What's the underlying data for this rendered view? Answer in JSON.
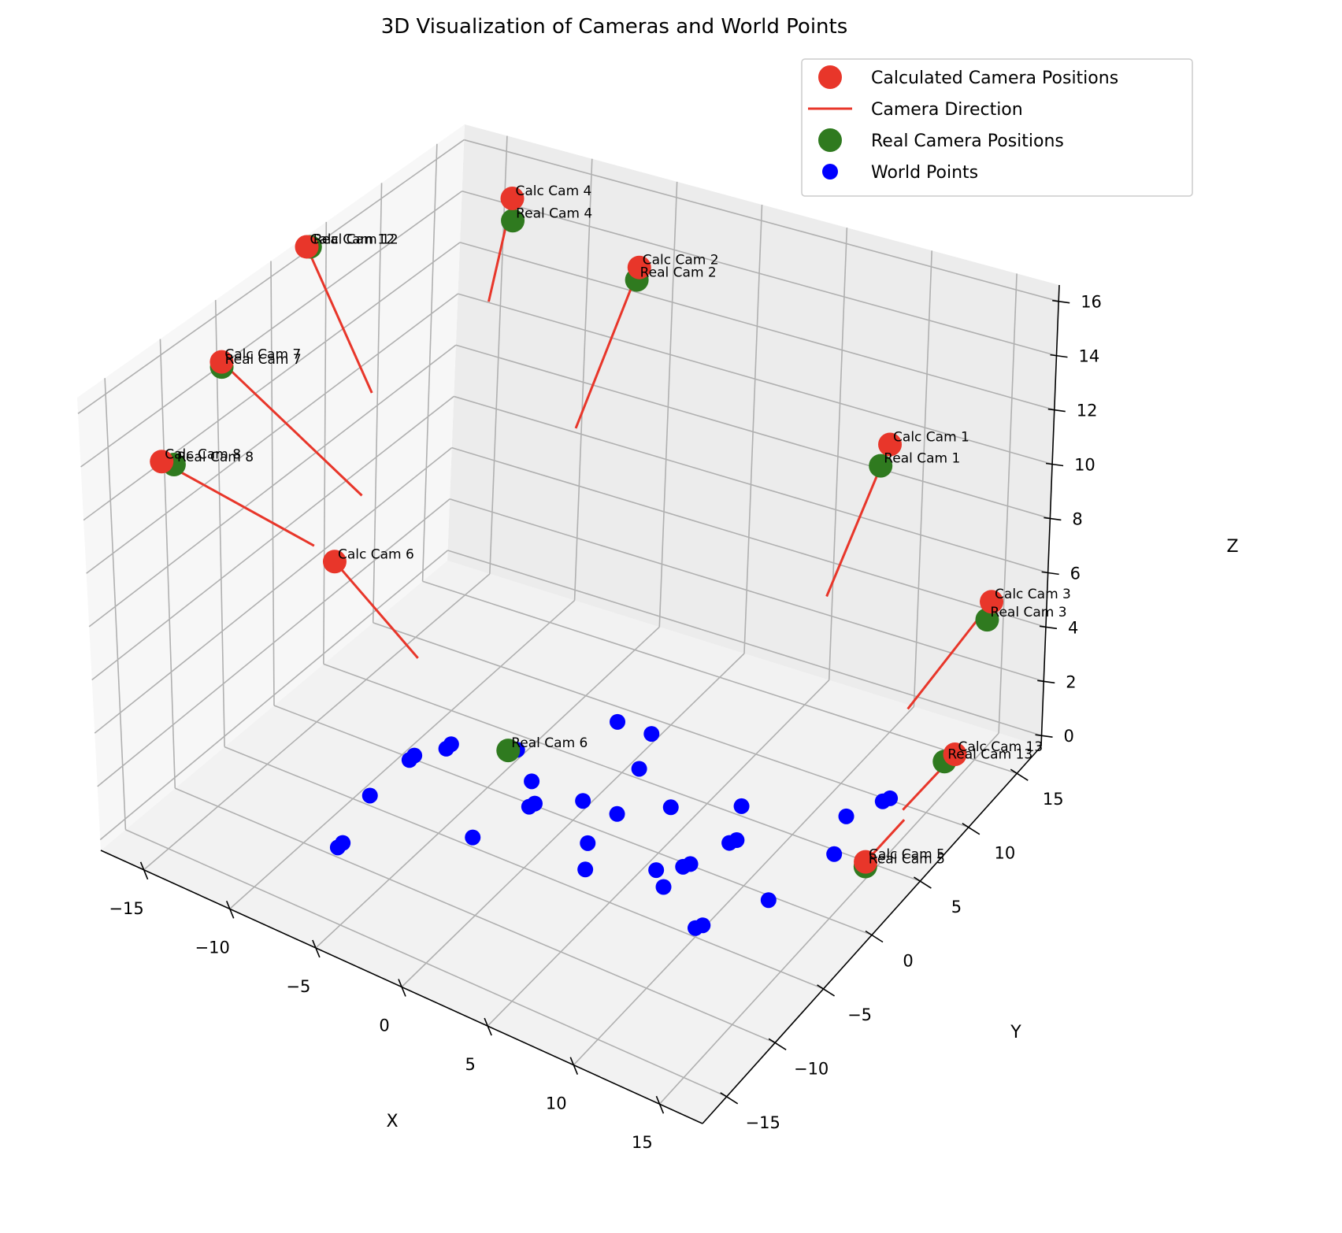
{
  "chart_data": {
    "type": "scatter",
    "title": "3D Visualization of Cameras and World Points",
    "xlabel": "X",
    "ylabel": "Y",
    "zlabel": "Z",
    "x_ticks": [
      "−15",
      "−10",
      "−5",
      "0",
      "5",
      "10",
      "15"
    ],
    "y_ticks": [
      "−15",
      "−10",
      "−5",
      "0",
      "5",
      "10",
      "15"
    ],
    "z_ticks": [
      "0",
      "2",
      "4",
      "6",
      "8",
      "10",
      "12",
      "14",
      "16"
    ],
    "grid": true,
    "legend_position": "top-right",
    "legend": [
      {
        "label": "Calculated Camera Positions",
        "kind": "marker",
        "color": "#e8362a"
      },
      {
        "label": "Camera Direction",
        "kind": "line",
        "color": "#e8362a"
      },
      {
        "label": "Real Camera Positions",
        "kind": "marker",
        "color": "#2f7a1f"
      },
      {
        "label": "World Points",
        "kind": "marker-small",
        "color": "#0000ff"
      }
    ],
    "colors": {
      "calc": "#e8362a",
      "real": "#2f7a1f",
      "world": "#0000ff",
      "direction": "#e8362a"
    },
    "calc_cameras": [
      {
        "label": "Calc Cam 1",
        "x": 8.5,
        "y": 16.6,
        "z": 9.5
      },
      {
        "label": "Calc Cam 2",
        "x": -6.0,
        "y": 15.8,
        "z": 13.8
      },
      {
        "label": "Calc Cam 3",
        "x": 16.0,
        "y": 14.3,
        "z": 6.1
      },
      {
        "label": "Calc Cam 4",
        "x": -11.2,
        "y": 12.0,
        "z": 16.8
      },
      {
        "label": "Calc Cam 5",
        "x": 16.0,
        "y": 1.8,
        "z": 1.5
      },
      {
        "label": "Calc Cam 6",
        "x": -11.6,
        "y": -3.9,
        "z": 8.1
      },
      {
        "label": "Calc Cam 7",
        "x": -14.4,
        "y": -9.5,
        "z": 16.8
      },
      {
        "label": "Calc Cam 8",
        "x": -14.5,
        "y": -15.0,
        "z": 14.7
      },
      {
        "label": "Calc Cam 12",
        "x": -14.4,
        "y": -1.7,
        "z": 18.7
      },
      {
        "label": "Calc Cam 13",
        "x": 16.0,
        "y": 11.0,
        "z": 1.7
      }
    ],
    "real_cameras": [
      {
        "label": "Real Cam 1",
        "x": 8.5,
        "y": 15.7,
        "z": 9.1
      },
      {
        "label": "Real Cam 2",
        "x": -6.0,
        "y": 15.6,
        "z": 13.4
      },
      {
        "label": "Real Cam 3",
        "x": 16.0,
        "y": 13.9,
        "z": 5.6
      },
      {
        "label": "Real Cam 4",
        "x": -11.2,
        "y": 12.1,
        "z": 15.9
      },
      {
        "label": "Real Cam 5",
        "x": 16.0,
        "y": 1.8,
        "z": 1.3
      },
      {
        "label": "Real Cam 6",
        "x": -3.2,
        "y": -1.1,
        "z": 2.0
      },
      {
        "label": "Real Cam 7",
        "x": -14.4,
        "y": -9.5,
        "z": 16.6
      },
      {
        "label": "Real Cam 8",
        "x": -14.0,
        "y": -14.7,
        "z": 14.7
      },
      {
        "label": "Real Cam 12",
        "x": -14.4,
        "y": -1.4,
        "z": 18.6
      },
      {
        "label": "Real Cam 13",
        "x": 16.0,
        "y": 9.9,
        "z": 1.9
      }
    ],
    "direction_ends": [
      {
        "camera": "Calc Cam 1",
        "x": 8.5,
        "y": 10.5,
        "z": 6.4
      },
      {
        "camera": "Calc Cam 2",
        "x": -6.0,
        "y": 10.0,
        "z": 9.8
      },
      {
        "camera": "Calc Cam 3",
        "x": 13.7,
        "y": 10.0,
        "z": 3.4
      },
      {
        "camera": "Calc Cam 4",
        "x": -11.2,
        "y": 10.0,
        "z": 13.5
      },
      {
        "camera": "Calc Cam 5",
        "x": 16.0,
        "y": 5.8,
        "z": 1.4
      },
      {
        "camera": "Calc Cam 6",
        "x": -7.3,
        "y": -3.1,
        "z": 5.3
      },
      {
        "camera": "Calc Cam 7",
        "x": -9.3,
        "y": -5.1,
        "z": 11.9
      },
      {
        "camera": "Calc Cam 8",
        "x": -9.7,
        "y": -9.0,
        "z": 11.2
      },
      {
        "camera": "Calc Cam 12",
        "x": -11.0,
        "y": -1.3,
        "z": 14.0
      },
      {
        "camera": "Calc Cam 13",
        "x": 16.0,
        "y": 5.6,
        "z": 1.9
      }
    ],
    "world_points": [
      {
        "x": -8.0,
        "y": -10.0,
        "z": 0.0
      },
      {
        "x": -8.0,
        "y": -9.5,
        "z": 0.0
      },
      {
        "x": -9.0,
        "y": -5.0,
        "z": 0.0
      },
      {
        "x": -9.0,
        "y": -1.0,
        "z": 0.0
      },
      {
        "x": -9.0,
        "y": -0.5,
        "z": 0.0
      },
      {
        "x": -3.0,
        "y": -5.0,
        "z": 0.0
      },
      {
        "x": -2.0,
        "y": -1.0,
        "z": 0.0
      },
      {
        "x": -1.9,
        "y": -0.6,
        "z": 0.0
      },
      {
        "x": -3.0,
        "y": 1.0,
        "z": 0.0
      },
      {
        "x": 0.0,
        "y": 1.0,
        "z": 0.0
      },
      {
        "x": -8.0,
        "y": 1.0,
        "z": 0.0
      },
      {
        "x": -8.0,
        "y": 1.5,
        "z": 0.0
      },
      {
        "x": -5.0,
        "y": 3.0,
        "z": 0.0
      },
      {
        "x": -2.0,
        "y": 8.0,
        "z": 0.0
      },
      {
        "x": 0.0,
        "y": 8.0,
        "z": 0.0
      },
      {
        "x": 1.0,
        "y": 5.0,
        "z": 0.0
      },
      {
        "x": 2.0,
        "y": 1.0,
        "z": 0.0
      },
      {
        "x": 4.0,
        "y": 3.0,
        "z": 0.0
      },
      {
        "x": 2.0,
        "y": -2.0,
        "z": 0.0
      },
      {
        "x": 3.0,
        "y": -4.0,
        "z": 0.0
      },
      {
        "x": 6.0,
        "y": -2.0,
        "z": 0.0
      },
      {
        "x": 7.0,
        "y": 5.0,
        "z": 0.0
      },
      {
        "x": 8.0,
        "y": 2.0,
        "z": 0.0
      },
      {
        "x": 8.2,
        "y": 2.4,
        "z": 0.0
      },
      {
        "x": 7.0,
        "y": -1.0,
        "z": 0.0
      },
      {
        "x": 7.2,
        "y": -0.6,
        "z": 0.0
      },
      {
        "x": 7.0,
        "y": -3.0,
        "z": 0.0
      },
      {
        "x": 12.0,
        "y": 7.0,
        "z": 0.0
      },
      {
        "x": 13.0,
        "y": 9.0,
        "z": 0.0
      },
      {
        "x": 13.2,
        "y": 9.4,
        "z": 0.0
      },
      {
        "x": 13.0,
        "y": 4.0,
        "z": 0.0
      },
      {
        "x": 12.0,
        "y": -1.0,
        "z": 0.0
      },
      {
        "x": 10.0,
        "y": -5.0,
        "z": 0.0
      },
      {
        "x": 10.2,
        "y": -4.6,
        "z": 0.0
      }
    ]
  }
}
